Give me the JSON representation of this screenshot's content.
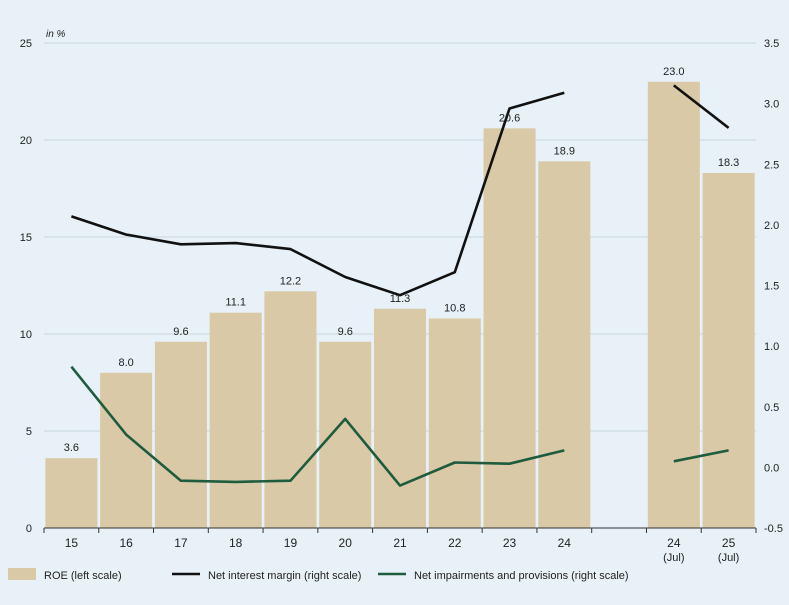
{
  "chart_data": {
    "type": "bar",
    "unit_label": "in %",
    "categories": [
      [
        "15"
      ],
      [
        "16"
      ],
      [
        "17"
      ],
      [
        "18"
      ],
      [
        "19"
      ],
      [
        "20"
      ],
      [
        "21"
      ],
      [
        "22"
      ],
      [
        "23"
      ],
      [
        "24"
      ],
      [
        ""
      ],
      [
        "24",
        "(Jul)"
      ],
      [
        "25",
        "(Jul)"
      ]
    ],
    "y_left": {
      "min": 0,
      "max": 25,
      "ticks": [
        "0",
        "5",
        "10",
        "15",
        "20",
        "25"
      ]
    },
    "y_right": {
      "min": -0.5,
      "max": 3.5,
      "ticks": [
        "-0.5",
        "0.0",
        "0.5",
        "1.0",
        "1.5",
        "2.0",
        "2.5",
        "3.0",
        "3.5"
      ]
    },
    "series": [
      {
        "name": "ROE (left scale)",
        "type": "bar",
        "axis": "left",
        "color": "#d9c9a6",
        "values": [
          3.6,
          8.0,
          9.6,
          11.1,
          12.2,
          9.6,
          11.3,
          10.8,
          20.6,
          18.9,
          null,
          23.0,
          18.3
        ],
        "labels": [
          "3.6",
          "8.0",
          "9.6",
          "11.1",
          "12.2",
          "9.6",
          "11.3",
          "10.8",
          "20.6",
          "18.9",
          "",
          "23.0",
          "18.3"
        ]
      },
      {
        "name": "Net interest margin (right scale)",
        "type": "line",
        "axis": "right",
        "color": "#111111",
        "values": [
          2.07,
          1.92,
          1.84,
          1.85,
          1.8,
          1.57,
          1.42,
          1.61,
          2.96,
          3.09,
          null,
          3.15,
          2.8
        ]
      },
      {
        "name": "Net impairments and provisions (right scale)",
        "type": "line",
        "axis": "right",
        "color": "#1f5c3e",
        "values": [
          0.83,
          0.27,
          -0.11,
          -0.12,
          -0.11,
          0.4,
          -0.15,
          0.04,
          0.03,
          0.14,
          null,
          0.05,
          0.14
        ]
      }
    ],
    "grid": true,
    "legend_position": "bottom"
  }
}
